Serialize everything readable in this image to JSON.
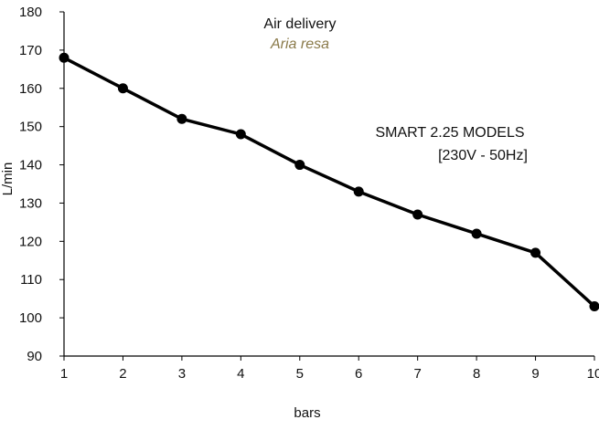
{
  "chart_data": {
    "type": "line",
    "title": "Air delivery",
    "subtitle": "Aria resa",
    "xlabel": "bars",
    "ylabel": "L/min",
    "x": [
      1,
      2,
      3,
      4,
      5,
      6,
      7,
      8,
      9,
      10
    ],
    "series": [
      {
        "name": "",
        "values": [
          168,
          160,
          152,
          148,
          140,
          133,
          127,
          122,
          117,
          103
        ]
      }
    ],
    "xlim": [
      1,
      10
    ],
    "ylim": [
      90,
      180
    ],
    "yticks": [
      90,
      100,
      110,
      120,
      130,
      140,
      150,
      160,
      170,
      180
    ],
    "xticks": [
      1,
      2,
      3,
      4,
      5,
      6,
      7,
      8,
      9,
      10
    ],
    "grid": false,
    "annotations": [
      "SMART 2.25 MODELS",
      "[230V - 50Hz]"
    ],
    "colors": {
      "line": "#000000",
      "subtitle": "#8a7a4a",
      "axis": "#000000"
    }
  }
}
